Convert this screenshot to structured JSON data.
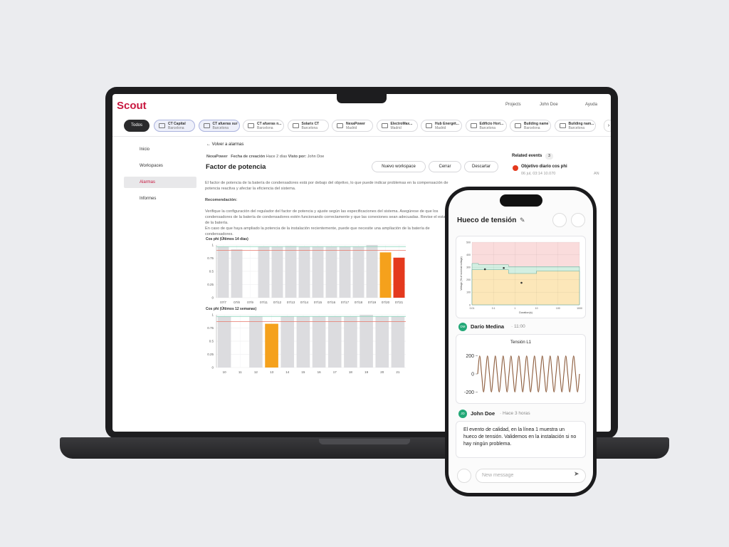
{
  "header": {
    "brand": "Scout",
    "nav": [
      "Projects",
      "John Doe",
      "Ayuda"
    ]
  },
  "tabs": {
    "all": "Todos",
    "sites": [
      {
        "name": "CT Capital",
        "city": "Barcelona"
      },
      {
        "name": "CT afueras sur",
        "city": "Barcelona"
      },
      {
        "name": "CT afueras n...",
        "city": "Barcelona"
      },
      {
        "name": "Solarix CT",
        "city": "Barcelona"
      },
      {
        "name": "NexaPower",
        "city": "Madrid"
      },
      {
        "name": "ElectroMax...",
        "city": "Madrid"
      },
      {
        "name": "Hub Energét...",
        "city": "Madrid"
      },
      {
        "name": "Edificio Hori...",
        "city": "Barcelona"
      },
      {
        "name": "Building name",
        "city": "Barcelona"
      },
      {
        "name": "Building nam...",
        "city": "Barcelona"
      }
    ]
  },
  "sidebar": [
    "Inicio",
    "Workspaces",
    "Alarmas",
    "Informes"
  ],
  "alarm": {
    "back": "Volver a alarmas",
    "source": "NexaPower",
    "created_label": "Fecha de creación",
    "created": "Hace 2 días",
    "seen_label": "Visto por:",
    "seen_by": "John Doe",
    "title": "Factor de potencia",
    "actions": [
      "Nuevo workspace",
      "Cerrar",
      "Descartar"
    ],
    "description": "El factor de potencia de la batería de condensadores está por debajo del objetivo, lo que puede indicar problemas en la compensación de potencia reactiva y afectar la eficiencia del sistema.",
    "recommendation_label": "Recomendación:",
    "recommendation": [
      "Verifique la configuración del regulador del factor de potencia y ajuste según las especificaciones del sistema. Asegúrese de que los condensadores de la batería de condensadores estén funcionando correctamente y que las conexiones sean adecuadas. Revise el estado de la batería.",
      "En caso de que haya ampliado la potencia de la instalación recientemente, puede que necesite una ampliación de la batería de condensadores."
    ]
  },
  "related": {
    "title": "Related events",
    "count": 3,
    "items": [
      {
        "title": "Objetivo diario cos phi",
        "meta": "06 jul, 03:14 10.070",
        "tag": "AN"
      }
    ]
  },
  "phone": {
    "title": "Hueco de tensión",
    "messages": [
      {
        "initials": "DM",
        "author": "Darío Medina",
        "time": "11:00"
      },
      {
        "initials": "JD",
        "author": "John Doe",
        "time": "Hace 3 horas",
        "text": "El evento de calidad, en la línea 1 muestra un hueco de tensión. Validemos en la instalación si no hay ningún problema."
      }
    ],
    "input_placeholder": "New message"
  },
  "chart_data": [
    {
      "type": "bar",
      "title": "Cos phi (Últimos 14 días)",
      "categories": [
        "07/7",
        "07/8",
        "07/9",
        "07/11",
        "07/12",
        "07/13",
        "07/14",
        "07/15",
        "07/16",
        "07/17",
        "07/18",
        "07/19",
        "07/20",
        "07/21"
      ],
      "values": [
        0.97,
        0.92,
        null,
        0.97,
        0.97,
        0.98,
        0.97,
        0.97,
        0.97,
        0.97,
        0.97,
        1.0,
        0.86,
        0.76
      ],
      "bar_colors": [
        "#dcdcdf",
        "#dcdcdf",
        "#dcdcdf",
        "#dcdcdf",
        "#dcdcdf",
        "#dcdcdf",
        "#dcdcdf",
        "#dcdcdf",
        "#dcdcdf",
        "#dcdcdf",
        "#dcdcdf",
        "#dcdcdf",
        "#f5a11c",
        "#e4391d"
      ],
      "reference_lines": [
        {
          "value": 0.97,
          "color": "#7fd3b8"
        },
        {
          "value": 0.9,
          "color": "#e7766a"
        }
      ],
      "ylim": [
        0,
        1
      ],
      "yticks": [
        0,
        0.25,
        0.5,
        0.75,
        1
      ],
      "grid": true
    },
    {
      "type": "bar",
      "title": "Cos phi (Últimos 12 semanas)",
      "categories": [
        "10",
        "11",
        "12",
        "13",
        "14",
        "15",
        "16",
        "17",
        "18",
        "19",
        "20",
        "21"
      ],
      "values": [
        0.97,
        null,
        0.97,
        0.83,
        0.97,
        0.97,
        0.97,
        0.97,
        0.97,
        1.0,
        0.97,
        0.97
      ],
      "bar_colors": [
        "#dcdcdf",
        "#dcdcdf",
        "#dcdcdf",
        "#f5a11c",
        "#dcdcdf",
        "#dcdcdf",
        "#dcdcdf",
        "#dcdcdf",
        "#dcdcdf",
        "#dcdcdf",
        "#dcdcdf",
        "#dcdcdf"
      ],
      "reference_lines": [
        {
          "value": 0.97,
          "color": "#7fd3b8"
        },
        {
          "value": 0.87,
          "color": "#e7766a"
        }
      ],
      "ylim": [
        0,
        1
      ],
      "yticks": [
        0,
        0.25,
        0.5,
        0.75,
        1
      ],
      "grid": true
    },
    {
      "type": "scatter",
      "x_label": "Duration(s)",
      "y_label": "Voltage (% of nominal voltage)",
      "log_x": true,
      "x": [
        0.04,
        0.3,
        2
      ],
      "values": [
        284,
        294,
        176
      ],
      "color": "#333333",
      "background": "#fadcdc",
      "limits": [
        {
          "color": "#d3efe2",
          "x": [
            0.01,
            0.02,
            0.5,
            10,
            1000
          ],
          "values": [
            330,
            320,
            305,
            305,
            305
          ]
        },
        {
          "color": "#fce7b9",
          "x": [
            0.01,
            0.03,
            0.5,
            10,
            1000
          ],
          "values": [
            280,
            280,
            250,
            270,
            270
          ]
        }
      ],
      "xlim": [
        0.01,
        1000
      ],
      "xticks": [
        0.01,
        0.1,
        1,
        10,
        100,
        1000
      ],
      "ylim": [
        0,
        500
      ],
      "yticks": [
        0,
        100,
        200,
        300,
        400,
        500
      ],
      "grid": true
    },
    {
      "type": "line",
      "title": "Tensión L1",
      "color": "#8b5a3a",
      "values": [
        0,
        200,
        0,
        -200,
        0,
        200,
        0,
        -200,
        0,
        200,
        0,
        -200,
        0,
        200,
        0,
        -200,
        0,
        200,
        0,
        -200,
        0,
        200,
        0,
        -200,
        0,
        200,
        0,
        -200,
        0,
        200,
        0,
        -200,
        0,
        200,
        0,
        -200,
        0,
        200,
        0,
        -200,
        0,
        200,
        0,
        -200,
        0,
        200,
        0,
        -200,
        0,
        200,
        0,
        -200,
        0
      ],
      "ylim": [
        -260,
        260
      ],
      "yticks": [
        -200,
        0,
        200
      ],
      "grid": false
    }
  ]
}
